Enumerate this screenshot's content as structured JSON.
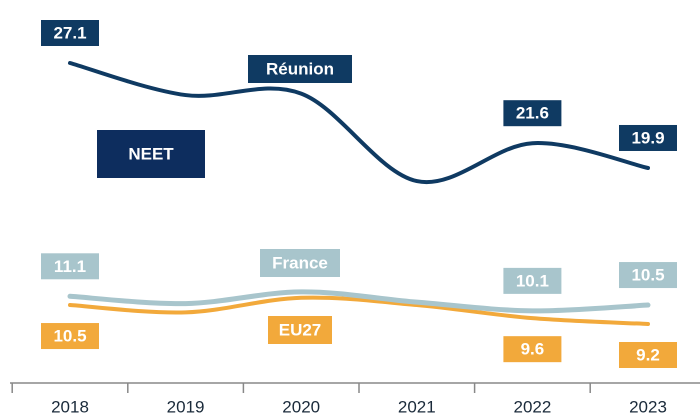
{
  "chart_data": {
    "type": "line",
    "title": "NEET",
    "categories": [
      "2018",
      "2019",
      "2020",
      "2021",
      "2022",
      "2023"
    ],
    "series": [
      {
        "name": "Réunion",
        "color": "#0f3a62",
        "values": [
          27.1,
          24.9,
          25.0,
          19.0,
          21.6,
          19.9
        ],
        "value_labels": [
          "27.1",
          null,
          null,
          null,
          "21.6",
          "19.9"
        ]
      },
      {
        "name": "France",
        "color": "#a8c5cc",
        "values": [
          11.1,
          10.6,
          11.4,
          10.7,
          10.1,
          10.5
        ],
        "value_labels": [
          "11.1",
          null,
          null,
          null,
          "10.1",
          "10.5"
        ]
      },
      {
        "name": "EU27",
        "color": "#f2a93b",
        "values": [
          10.5,
          10.0,
          11.0,
          10.5,
          9.6,
          9.2
        ],
        "value_labels": [
          "10.5",
          null,
          null,
          null,
          "9.6",
          "9.2"
        ]
      }
    ]
  }
}
